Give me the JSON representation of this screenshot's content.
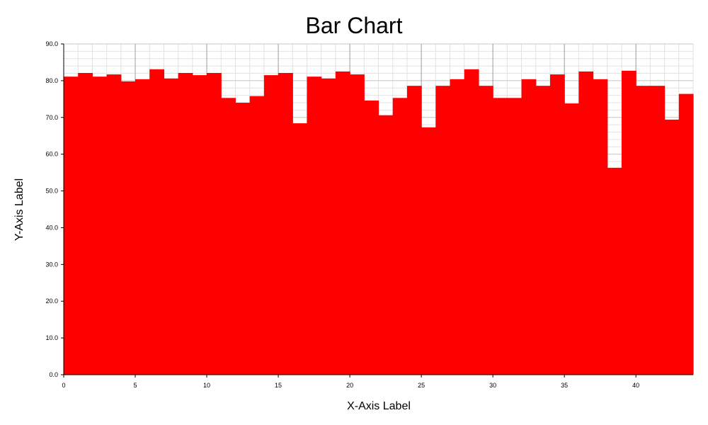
{
  "chart_data": {
    "type": "bar",
    "title": "Bar Chart",
    "xlabel": "X-Axis Label",
    "ylabel": "Y-Axis Label",
    "xlim": [
      0,
      44
    ],
    "ylim": [
      0,
      90
    ],
    "x_ticks": [
      "0",
      "5",
      "10",
      "15",
      "20",
      "25",
      "30",
      "35",
      "40"
    ],
    "y_ticks": [
      "0.0",
      "10.0",
      "20.0",
      "30.0",
      "40.0",
      "50.0",
      "60.0",
      "70.0",
      "80.0",
      "90.0"
    ],
    "grid": true,
    "bar_color": "#ff0000",
    "x": [
      0,
      1,
      2,
      3,
      4,
      5,
      6,
      7,
      8,
      9,
      10,
      11,
      12,
      13,
      14,
      15,
      16,
      17,
      18,
      19,
      20,
      21,
      22,
      23,
      24,
      25,
      26,
      27,
      28,
      29,
      30,
      31,
      32,
      33,
      34,
      35,
      36,
      37,
      38,
      39,
      40,
      41,
      42,
      43
    ],
    "values": [
      81.1,
      82.1,
      81.1,
      81.7,
      79.8,
      80.4,
      83.1,
      80.6,
      82.1,
      81.5,
      82.1,
      75.3,
      74.0,
      75.8,
      81.5,
      82.1,
      68.4,
      81.1,
      80.6,
      82.5,
      81.7,
      74.6,
      70.6,
      75.3,
      78.6,
      67.3,
      78.6,
      80.4,
      83.1,
      78.6,
      75.3,
      75.3,
      80.4,
      78.6,
      81.7,
      73.8,
      82.5,
      80.4,
      56.3,
      82.7,
      78.6,
      78.6,
      69.4,
      76.4
    ]
  }
}
